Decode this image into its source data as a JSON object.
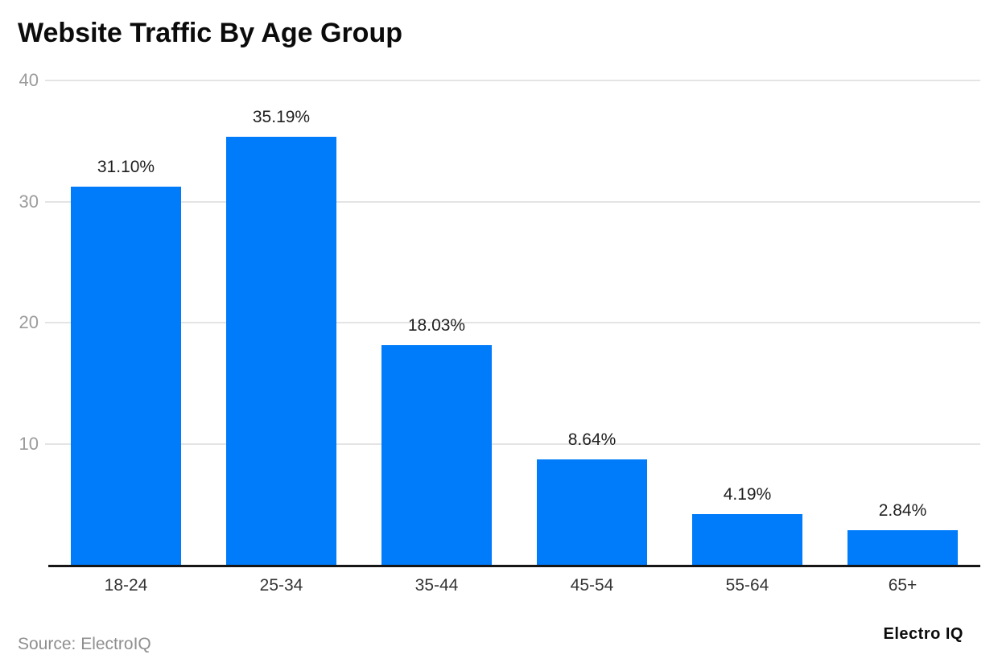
{
  "title": "Website Traffic By Age Group",
  "footer": {
    "source": "Source: ElectroIQ",
    "brand": "Electro IQ"
  },
  "colors": {
    "bar": "#007bfa",
    "grid": "#e4e4e4",
    "axis": "#161616",
    "ytick_label": "#9b9b9b",
    "xtick_label": "#353535",
    "data_label": "#1f1f1f",
    "source_text": "#8f8f8f",
    "background": "#ffffff"
  },
  "chart_data": {
    "type": "bar",
    "title": "Website Traffic By Age Group",
    "categories": [
      "18-24",
      "25-34",
      "35-44",
      "45-54",
      "55-64",
      "65+"
    ],
    "values": [
      31.1,
      35.19,
      18.03,
      8.64,
      4.19,
      2.84
    ],
    "data_labels": [
      "31.10%",
      "35.19%",
      "18.03%",
      "8.64%",
      "4.19%",
      "2.84%"
    ],
    "xlabel": "",
    "ylabel": "",
    "ylim": [
      0,
      40
    ],
    "yticks": [
      10,
      20,
      30,
      40
    ],
    "grid": true,
    "legend": false,
    "bar_color": "#007bfa"
  }
}
